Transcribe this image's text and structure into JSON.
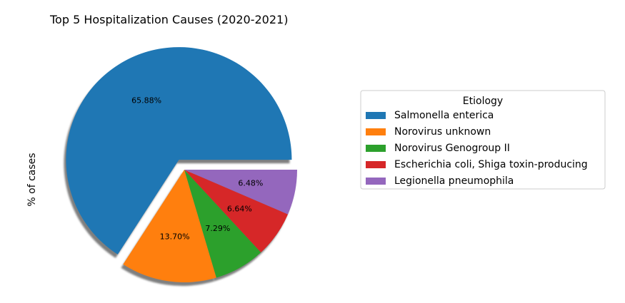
{
  "chart_data": {
    "type": "pie",
    "title": "Top 5 Hospitalization Causes (2020-2021)",
    "ylabel": "% of cases",
    "legend_title": "Etiology",
    "legend_position": "right",
    "shadow": true,
    "exploded": "Salmonella enterica",
    "start_angle_deg": 0,
    "slices": [
      {
        "label": "Salmonella enterica",
        "value": 65.88,
        "pct_label": "65.88%",
        "color": "#1f77b4"
      },
      {
        "label": "Norovirus unknown",
        "value": 13.7,
        "pct_label": "13.70%",
        "color": "#ff7f0e"
      },
      {
        "label": "Norovirus Genogroup II",
        "value": 7.29,
        "pct_label": "7.29%",
        "color": "#2ca02c"
      },
      {
        "label": "Escherichia coli, Shiga toxin-producing",
        "value": 6.64,
        "pct_label": "6.64%",
        "color": "#d62728"
      },
      {
        "label": "Legionella pneumophila",
        "value": 6.48,
        "pct_label": "6.48%",
        "color": "#9467bd"
      }
    ]
  }
}
